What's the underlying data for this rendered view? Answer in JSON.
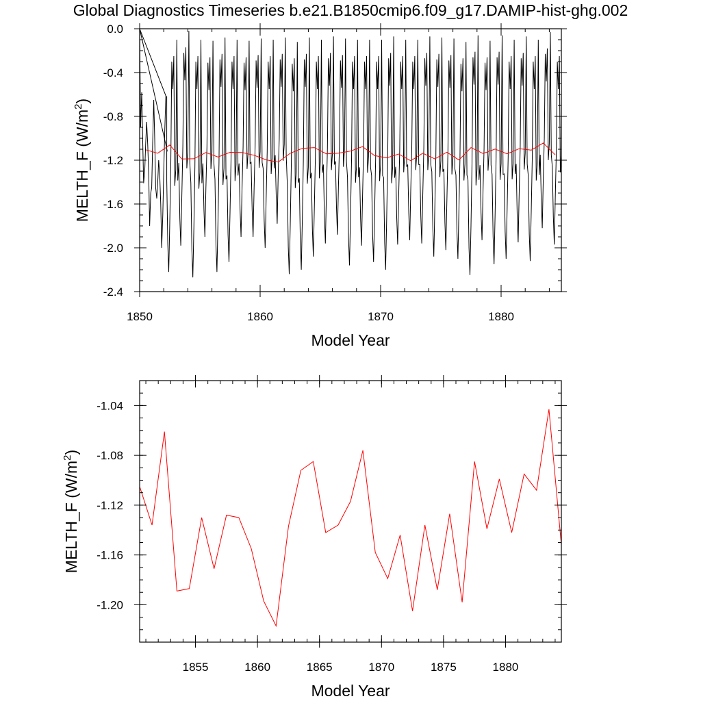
{
  "title": "Global Diagnostics Timeseries b.e21.B1850cmip6.f09_g17.DAMIP-hist-ghg.002",
  "colors": {
    "monthly": "#000000",
    "annual": "#ff0000",
    "axes": "#000000"
  },
  "chart_data": [
    {
      "type": "line",
      "xlabel": "Model Year",
      "ylabel_main": "MELTH_F (W/m",
      "ylabel_sup": "2",
      "ylabel_close": ")",
      "xlim": [
        1850,
        1885
      ],
      "ylim": [
        -2.4,
        0.0
      ],
      "xticks": [
        1850,
        1860,
        1870,
        1880
      ],
      "xtick_labels": [
        "1850",
        "1860",
        "1870",
        "1880"
      ],
      "yticks": [
        0.0,
        -0.4,
        -0.8,
        -1.2,
        -1.6,
        -2.0,
        -2.4
      ],
      "ytick_labels": [
        "0.0",
        "-0.4",
        "-0.8",
        "-1.2",
        "-1.6",
        "-2.0",
        "-2.4"
      ],
      "series": [
        {
          "color": "#000000",
          "x": [
            1850.0,
            1850.08,
            1850.17,
            1850.25,
            1850.33,
            1850.42,
            1850.5,
            1850.58,
            1850.67,
            1850.75,
            1850.83,
            1850.92,
            1851.0,
            1851.08,
            1851.17,
            1851.25,
            1851.33,
            1851.42,
            1851.5,
            1851.58,
            1851.67,
            1851.75,
            1851.83,
            1851.92,
            1852.0,
            1852.08,
            1852.17,
            1852.25
          ],
          "y": [
            0.0,
            -0.9,
            -0.58,
            -1.0,
            -1.41,
            -1.3,
            -1.05,
            -0.85,
            -1.06,
            -1.32,
            -1.8,
            -1.5,
            -1.45,
            -1.05,
            -0.65,
            -1.0,
            -1.45,
            -1.55,
            -1.4,
            -1.2,
            -1.35,
            -1.6,
            -2.0,
            -1.7,
            -1.3,
            -0.95,
            -0.62,
            -0.62
          ],
          "extra_segments": [
            [
              [
                1850.0,
                0.0
              ],
              [
                1852.2,
                -0.62
              ]
            ],
            [
              [
                1850.0,
                0.0
              ],
              [
                1852.3,
                -1.12
              ]
            ]
          ],
          "synthetic_cycle": {
            "start_year": 1852.25,
            "end_year": 1885.0,
            "annual_peaks": [
              -0.55,
              -0.47,
              -0.55,
              -0.56,
              -0.53,
              -0.55,
              -0.56,
              -0.54,
              -0.55,
              -0.53,
              -0.57,
              -0.53,
              -0.55,
              -0.52,
              -0.54,
              -0.55,
              -0.55,
              -0.55,
              -0.52,
              -0.55,
              -0.55,
              -0.52,
              -0.53,
              -0.54,
              -0.57,
              -0.51,
              -0.56,
              -0.51,
              -0.55,
              -0.52,
              -0.55,
              -0.48,
              -0.55
            ],
            "annual_troughs": [
              -2.22,
              -1.98,
              -2.27,
              -1.9,
              -2.22,
              -2.13,
              -1.9,
              -1.9,
              -2.0,
              -1.78,
              -2.24,
              -2.2,
              -2.08,
              -1.96,
              -1.88,
              -2.16,
              -1.98,
              -2.13,
              -2.2,
              -1.97,
              -1.93,
              -1.96,
              -2.08,
              -2.02,
              -2.1,
              -2.25,
              -1.93,
              -2.15,
              -2.1,
              -1.95,
              -2.12,
              -1.82,
              -1.97
            ]
          }
        },
        {
          "color": "#ff0000",
          "x": [
            1850.5,
            1851.5,
            1852.5,
            1853.5,
            1854.5,
            1855.5,
            1856.5,
            1857.5,
            1858.5,
            1859.5,
            1860.5,
            1861.5,
            1862.5,
            1863.5,
            1864.5,
            1865.5,
            1866.5,
            1867.5,
            1868.5,
            1869.5,
            1870.5,
            1871.5,
            1872.5,
            1873.5,
            1874.5,
            1875.5,
            1876.5,
            1877.5,
            1878.5,
            1879.5,
            1880.5,
            1881.5,
            1882.5,
            1883.5,
            1884.5
          ],
          "y": [
            -1.105,
            -1.136,
            -1.061,
            -1.189,
            -1.187,
            -1.13,
            -1.171,
            -1.128,
            -1.13,
            -1.155,
            -1.197,
            -1.217,
            -1.137,
            -1.092,
            -1.085,
            -1.142,
            -1.136,
            -1.117,
            -1.076,
            -1.158,
            -1.179,
            -1.144,
            -1.205,
            -1.136,
            -1.188,
            -1.127,
            -1.198,
            -1.085,
            -1.139,
            -1.099,
            -1.142,
            -1.095,
            -1.108,
            -1.043,
            -1.152
          ]
        }
      ]
    },
    {
      "type": "line",
      "xlabel": "Model Year",
      "ylabel_main": "MELTH_F (W/m",
      "ylabel_sup": "2",
      "ylabel_close": ")",
      "xlim": [
        1850.5,
        1884.5
      ],
      "ylim": [
        -1.23,
        -1.02
      ],
      "xticks": [
        1855,
        1860,
        1865,
        1870,
        1875,
        1880
      ],
      "xtick_labels": [
        "1855",
        "1860",
        "1865",
        "1870",
        "1875",
        "1880"
      ],
      "yticks": [
        -1.04,
        -1.08,
        -1.12,
        -1.16,
        -1.2
      ],
      "ytick_labels": [
        "-1.04",
        "-1.08",
        "-1.12",
        "-1.16",
        "-1.20"
      ],
      "series": [
        {
          "color": "#ff0000",
          "x": [
            1850.5,
            1851.5,
            1852.5,
            1853.5,
            1854.5,
            1855.5,
            1856.5,
            1857.5,
            1858.5,
            1859.5,
            1860.5,
            1861.5,
            1862.5,
            1863.5,
            1864.5,
            1865.5,
            1866.5,
            1867.5,
            1868.5,
            1869.5,
            1870.5,
            1871.5,
            1872.5,
            1873.5,
            1874.5,
            1875.5,
            1876.5,
            1877.5,
            1878.5,
            1879.5,
            1880.5,
            1881.5,
            1882.5,
            1883.5,
            1884.5
          ],
          "y": [
            -1.105,
            -1.136,
            -1.061,
            -1.189,
            -1.187,
            -1.13,
            -1.171,
            -1.128,
            -1.13,
            -1.155,
            -1.197,
            -1.217,
            -1.137,
            -1.092,
            -1.085,
            -1.142,
            -1.136,
            -1.117,
            -1.076,
            -1.158,
            -1.179,
            -1.144,
            -1.205,
            -1.136,
            -1.188,
            -1.127,
            -1.198,
            -1.085,
            -1.139,
            -1.099,
            -1.142,
            -1.095,
            -1.108,
            -1.043,
            -1.152
          ]
        }
      ]
    }
  ]
}
